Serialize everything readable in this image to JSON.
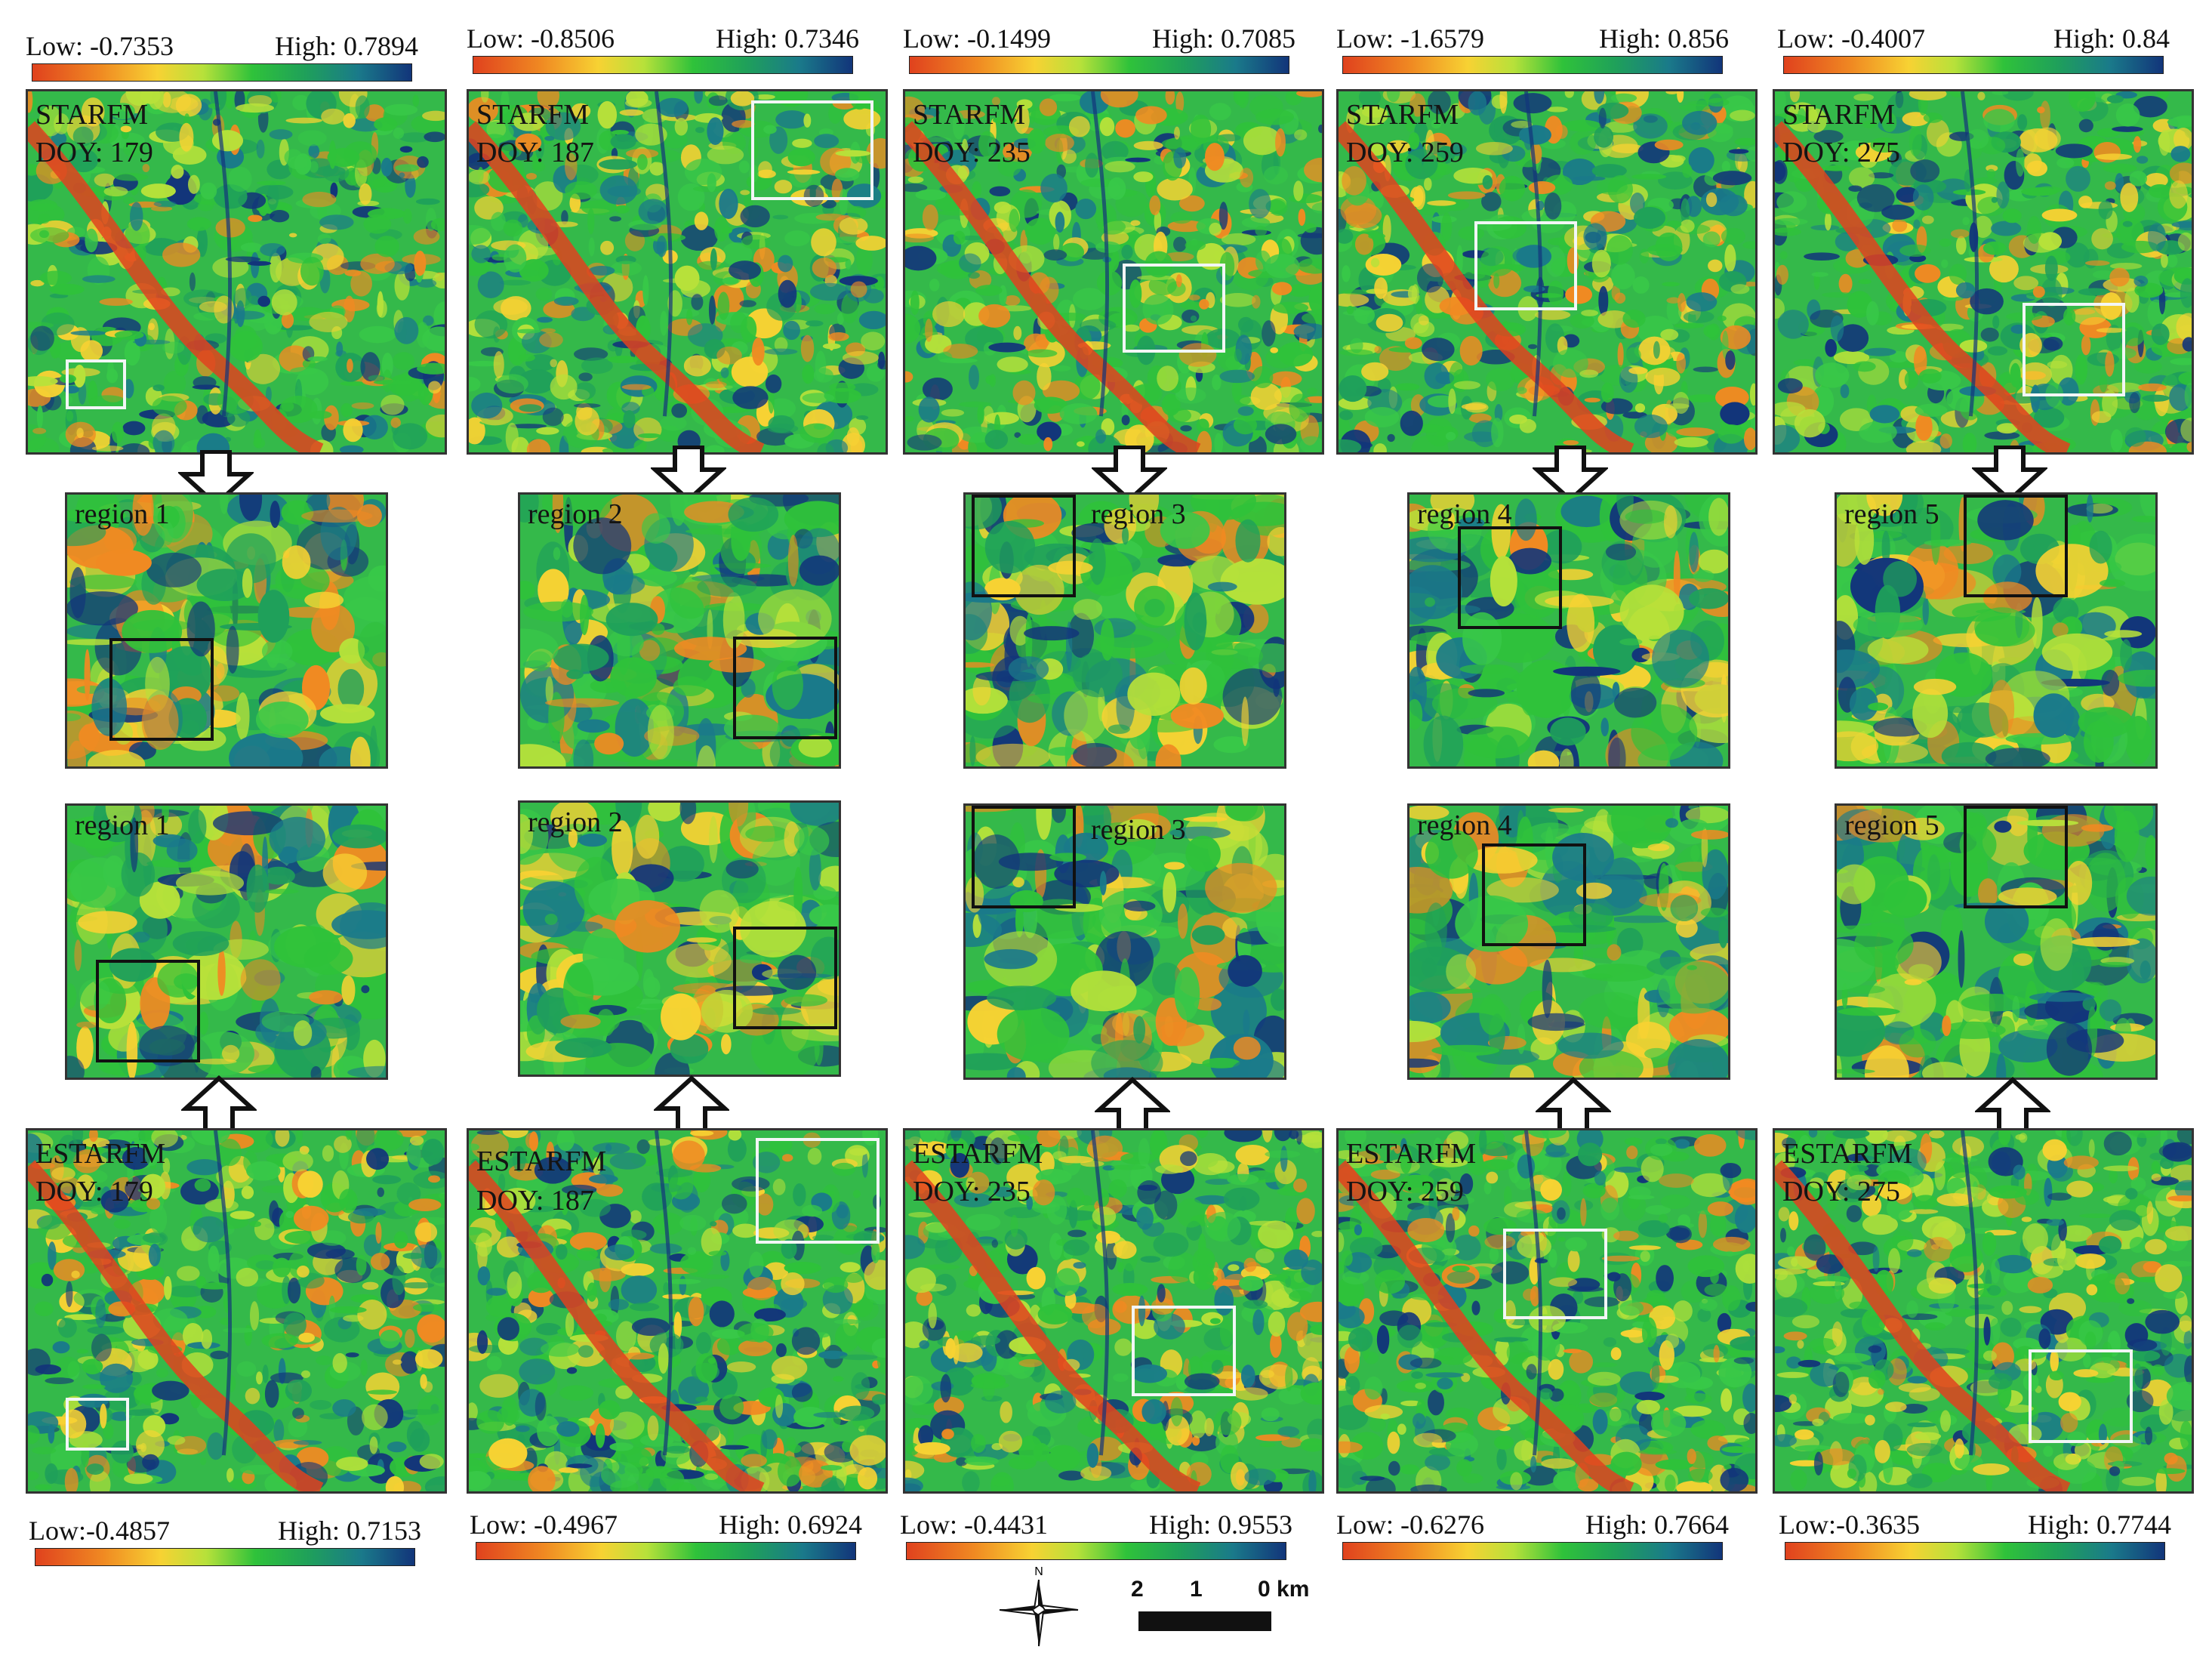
{
  "top_legends": [
    {
      "low": "Low: -0.7353",
      "high": "High: 0.7894"
    },
    {
      "low": "Low:  -0.8506",
      "high": "High: 0.7346"
    },
    {
      "low": "Low: -0.1499",
      "high": "High:  0.7085"
    },
    {
      "low": "Low: -1.6579",
      "high": "High: 0.856"
    },
    {
      "low": "Low: -0.4007",
      "high": "High: 0.84"
    }
  ],
  "bottom_legends": [
    {
      "low": "Low:-0.4857",
      "high": "High: 0.7153"
    },
    {
      "low": "Low: -0.4967",
      "high": "High: 0.6924"
    },
    {
      "low": "Low:  -0.4431",
      "high": "High:  0.9553"
    },
    {
      "low": "Low: -0.6276",
      "high": "High:  0.7664"
    },
    {
      "low": "Low:-0.3635",
      "high": "High: 0.7744"
    }
  ],
  "starfm_panels": [
    {
      "method": "STARFM",
      "doy": "DOY: 179"
    },
    {
      "method": "STARFM",
      "doy": "DOY: 187"
    },
    {
      "method": "STARFM",
      "doy": "DOY: 235"
    },
    {
      "method": "STARFM",
      "doy": "DOY: 259"
    },
    {
      "method": "STARFM",
      "doy": "DOY: 275"
    }
  ],
  "estarfm_panels": [
    {
      "method": "ESTARFM",
      "doy": "DOY: 179"
    },
    {
      "method": "ESTARFM",
      "doy": "DOY: 187"
    },
    {
      "method": "ESTARFM",
      "doy": "DOY: 235"
    },
    {
      "method": "ESTARFM",
      "doy": "DOY: 259"
    },
    {
      "method": "ESTARFM",
      "doy": "DOY: 275"
    }
  ],
  "region_labels": [
    "region 1",
    "region 2",
    "region 3",
    "region 4",
    "region 5"
  ],
  "scale_bar": {
    "labels": [
      "2",
      "1",
      "0 km"
    ]
  },
  "north_arrow": {
    "label": "N"
  },
  "colors": {
    "low": "#e0421e",
    "mid_low": "#f7d233",
    "mid": "#2fc23a",
    "mid_high": "#1a7a8a",
    "high": "#12357a",
    "box_white": "#f2f6f6",
    "box_black": "#111111"
  }
}
